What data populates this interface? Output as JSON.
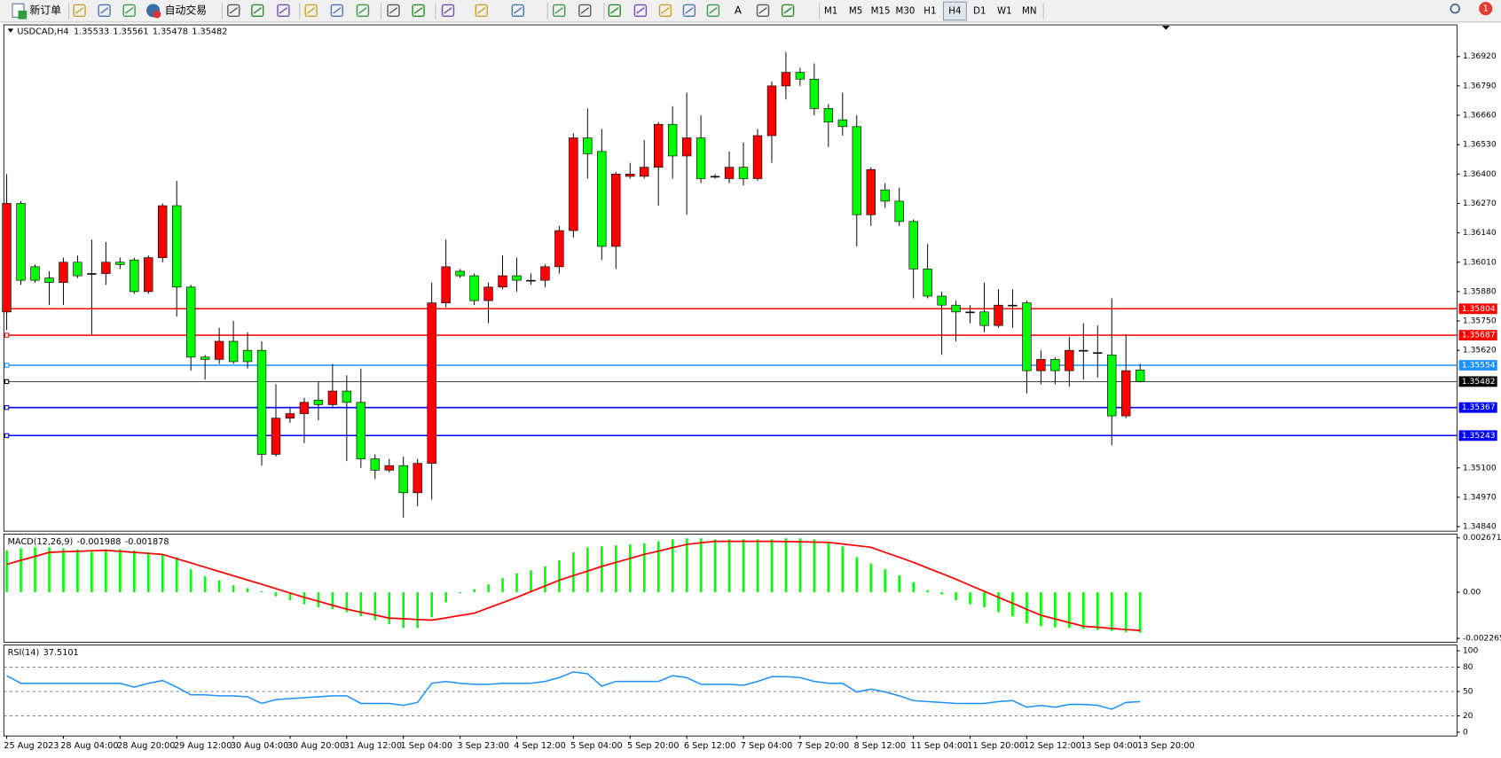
{
  "toolbar": {
    "new_order": "新订单",
    "auto_trading": "自动交易",
    "text_tool": "A",
    "notifications": 1,
    "timeframes": [
      "M1",
      "M5",
      "M15",
      "M30",
      "H1",
      "H4",
      "D1",
      "W1",
      "MN"
    ],
    "active_timeframe": "H4"
  },
  "chart_data": [
    {
      "type": "candlestick",
      "title": "USDCAD,H4",
      "up_color": "#ff0000",
      "down_color": "#00ff00",
      "categories": [
        "25 Aug 2023",
        null,
        null,
        null,
        "28 Aug 04:00",
        null,
        null,
        null,
        "28 Aug 20:00",
        null,
        null,
        null,
        "29 Aug 12:00",
        null,
        null,
        null,
        "30 Aug 04:00",
        null,
        null,
        null,
        "30 Aug 20:00",
        null,
        null,
        null,
        "31 Aug 12:00",
        null,
        null,
        null,
        "1 Sep 04:00",
        null,
        null,
        null,
        "3 Sep 23:00",
        null,
        null,
        null,
        "4 Sep 12:00",
        null,
        null,
        null,
        "5 Sep 04:00",
        null,
        null,
        null,
        "5 Sep 20:00",
        null,
        null,
        null,
        "6 Sep 12:00",
        null,
        null,
        null,
        "7 Sep 04:00",
        null,
        null,
        null,
        "7 Sep 20:00",
        null,
        null,
        null,
        "8 Sep 12:00",
        null,
        null,
        null,
        "11 Sep 04:00",
        null,
        null,
        null,
        "11 Sep 20:00",
        null,
        null,
        null,
        "12 Sep 12:00",
        null,
        null,
        null,
        "13 Sep 04:00",
        null,
        null,
        null,
        "13 Sep 20:00"
      ],
      "open": [
        1.3579,
        1.3627,
        1.3599,
        1.3594,
        1.3592,
        1.3601,
        1.3596,
        1.3596,
        1.3601,
        1.3602,
        1.3588,
        1.3603,
        1.3626,
        1.359,
        1.3559,
        1.3558,
        1.3566,
        1.3562,
        1.3562,
        1.3516,
        1.3532,
        1.3534,
        1.354,
        1.3538,
        1.3544,
        1.3539,
        1.3514,
        1.3509,
        1.3511,
        1.3499,
        1.3512,
        1.3583,
        1.3597,
        1.3595,
        1.3584,
        1.359,
        1.3595,
        1.3593,
        1.3593,
        1.3599,
        1.3615,
        1.3656,
        1.365,
        1.3608,
        1.3639,
        1.3639,
        1.3643,
        1.3662,
        1.3648,
        1.3656,
        1.3639,
        1.3638,
        1.3643,
        1.3638,
        1.3657,
        1.3679,
        1.3685,
        1.3682,
        1.3669,
        1.3664,
        1.3661,
        1.3622,
        1.3633,
        1.3628,
        1.3619,
        1.3598,
        1.3586,
        1.3582,
        1.3579,
        1.3579,
        1.3573,
        1.3582,
        1.3583,
        1.3553,
        1.3558,
        1.3553,
        1.3562,
        1.3561,
        1.356,
        1.3533,
        1.35533
      ],
      "high": [
        1.364,
        1.3628,
        1.36,
        1.3597,
        1.3603,
        1.3604,
        1.3611,
        1.361,
        1.3603,
        1.3603,
        1.3604,
        1.3627,
        1.3637,
        1.3591,
        1.356,
        1.3572,
        1.3575,
        1.357,
        1.3566,
        1.3547,
        1.3537,
        1.3541,
        1.3548,
        1.3556,
        1.3551,
        1.3554,
        1.3516,
        1.3514,
        1.3515,
        1.3514,
        1.3592,
        1.3611,
        1.3598,
        1.3596,
        1.3592,
        1.3604,
        1.3603,
        1.3596,
        1.36,
        1.3617,
        1.3658,
        1.3669,
        1.366,
        1.3641,
        1.3645,
        1.3655,
        1.3663,
        1.367,
        1.3676,
        1.3666,
        1.364,
        1.365,
        1.3654,
        1.366,
        1.3681,
        1.3694,
        1.3687,
        1.3689,
        1.3671,
        1.3676,
        1.3666,
        1.3643,
        1.3636,
        1.3634,
        1.362,
        1.3609,
        1.3588,
        1.3584,
        1.3582,
        1.3592,
        1.3589,
        1.3589,
        1.3584,
        1.3562,
        1.3559,
        1.3568,
        1.3574,
        1.3573,
        1.3585,
        1.3569,
        1.35561
      ],
      "low": [
        1.3571,
        1.3591,
        1.3592,
        1.3582,
        1.3582,
        1.3594,
        1.3569,
        1.3591,
        1.3598,
        1.3587,
        1.3587,
        1.3601,
        1.3577,
        1.3553,
        1.3549,
        1.3556,
        1.3556,
        1.3554,
        1.3511,
        1.3515,
        1.353,
        1.3521,
        1.3531,
        1.3537,
        1.3513,
        1.351,
        1.3505,
        1.3508,
        1.3488,
        1.3493,
        1.3496,
        1.3581,
        1.3594,
        1.3582,
        1.3574,
        1.3589,
        1.3588,
        1.3591,
        1.359,
        1.3596,
        1.3612,
        1.3638,
        1.3602,
        1.3598,
        1.3638,
        1.3638,
        1.3626,
        1.3638,
        1.3622,
        1.3636,
        1.3638,
        1.3636,
        1.3635,
        1.3637,
        1.3645,
        1.3673,
        1.3679,
        1.3666,
        1.3652,
        1.3657,
        1.3608,
        1.3617,
        1.3625,
        1.3617,
        1.3585,
        1.3585,
        1.356,
        1.3566,
        1.3574,
        1.357,
        1.3572,
        1.3572,
        1.3543,
        1.3547,
        1.3547,
        1.3546,
        1.3549,
        1.355,
        1.352,
        1.3532,
        1.35478
      ],
      "close": [
        1.3627,
        1.3593,
        1.3593,
        1.3592,
        1.3601,
        1.3595,
        1.3596,
        1.3601,
        1.36,
        1.3588,
        1.3603,
        1.3626,
        1.359,
        1.3559,
        1.3558,
        1.3566,
        1.3557,
        1.3557,
        1.3516,
        1.3532,
        1.3534,
        1.3539,
        1.3538,
        1.3544,
        1.3539,
        1.3514,
        1.3509,
        1.3511,
        1.3499,
        1.3512,
        1.3583,
        1.3599,
        1.3595,
        1.3584,
        1.359,
        1.3595,
        1.3593,
        1.3593,
        1.3599,
        1.3615,
        1.3656,
        1.3649,
        1.3608,
        1.364,
        1.364,
        1.3643,
        1.3662,
        1.3648,
        1.3656,
        1.3638,
        1.3639,
        1.3643,
        1.3638,
        1.3657,
        1.3679,
        1.3685,
        1.3682,
        1.3669,
        1.3663,
        1.3661,
        1.3622,
        1.3642,
        1.3628,
        1.3619,
        1.3598,
        1.3586,
        1.3582,
        1.3579,
        1.3579,
        1.3573,
        1.3582,
        1.3582,
        1.3553,
        1.3558,
        1.3553,
        1.3562,
        1.3562,
        1.3561,
        1.3533,
        1.3553,
        1.35482
      ],
      "ylim": [
        1.3482,
        1.3706
      ],
      "yticks": [
        {
          "value": 1.3692,
          "label": "1.36920"
        },
        {
          "value": 1.3679,
          "label": "1.36790"
        },
        {
          "value": 1.3666,
          "label": "1.36660"
        },
        {
          "value": 1.3653,
          "label": "1.36530"
        },
        {
          "value": 1.364,
          "label": "1.36400"
        },
        {
          "value": 1.3627,
          "label": "1.36270"
        },
        {
          "value": 1.3614,
          "label": "1.36140"
        },
        {
          "value": 1.3601,
          "label": "1.36010"
        },
        {
          "value": 1.3588,
          "label": "1.35880"
        },
        {
          "value": 1.3575,
          "label": "1.35750"
        },
        {
          "value": 1.3562,
          "label": "1.35620"
        },
        {
          "value": 1.351,
          "label": "1.35100"
        },
        {
          "value": 1.3497,
          "label": "1.34970"
        },
        {
          "value": 1.3484,
          "label": "1.34840"
        }
      ],
      "levels": [
        {
          "value": 1.35804,
          "color": "#ff0000"
        },
        {
          "value": 1.35687,
          "color": "#ff0000"
        },
        {
          "value": 1.35554,
          "color": "#1e90ff"
        },
        {
          "value": 1.35482,
          "color": "#000000"
        },
        {
          "value": 1.35367,
          "color": "#0000ff"
        },
        {
          "value": 1.35243,
          "color": "#0000ff"
        }
      ]
    },
    {
      "type": "macd",
      "title": "MACD(12,26,9)",
      "histogram": {
        "color": "#00ff00",
        "values": [
          0.00206,
          0.00216,
          0.00221,
          0.00221,
          0.00216,
          0.00211,
          0.00206,
          0.00211,
          0.00211,
          0.00206,
          0.00196,
          0.00186,
          0.00172,
          0.00113,
          0.00078,
          0.00059,
          0.00034,
          0.0002,
          5e-05,
          -0.0002,
          -0.00039,
          -0.00059,
          -0.00074,
          -0.00083,
          -0.00098,
          -0.00118,
          -0.00137,
          -0.00157,
          -0.00176,
          -0.00176,
          -0.00123,
          -0.00049,
          -5e-05,
          0.00015,
          0.00039,
          0.00069,
          0.00093,
          0.00108,
          0.00127,
          0.00157,
          0.00196,
          0.00221,
          0.00225,
          0.0023,
          0.00235,
          0.0024,
          0.0025,
          0.0026,
          0.00265,
          0.00265,
          0.0026,
          0.0026,
          0.0026,
          0.0026,
          0.0026,
          0.00265,
          0.00265,
          0.0026,
          0.00245,
          0.00225,
          0.00172,
          0.00142,
          0.00113,
          0.00083,
          0.00049,
          0.0001,
          -0.0001,
          -0.00039,
          -0.00059,
          -0.00074,
          -0.00098,
          -0.00118,
          -0.00152,
          -0.00167,
          -0.00172,
          -0.00176,
          -0.0018,
          -0.00185,
          -0.0019,
          -0.00196,
          -0.001988
        ]
      },
      "signal": {
        "color": "#ff0000",
        "values": [
          0.00137,
          0.00157,
          0.00176,
          0.00196,
          0.00199,
          0.00201,
          0.00204,
          0.00206,
          0.00201,
          0.00196,
          0.00191,
          0.00186,
          0.00165,
          0.00144,
          0.00123,
          0.00102,
          0.00081,
          0.0006,
          0.00039,
          0.00018,
          -4e-05,
          -0.00025,
          -0.00044,
          -0.00064,
          -0.00083,
          -0.00098,
          -0.00112,
          -0.00127,
          -0.0013,
          -0.00134,
          -0.00137,
          -0.00126,
          -0.00114,
          -0.00103,
          -0.00077,
          -0.00051,
          -0.00025,
          3e-05,
          0.00031,
          0.00059,
          0.00082,
          0.00104,
          0.00127,
          0.00147,
          0.00166,
          0.00186,
          0.00202,
          0.00219,
          0.00235,
          0.00243,
          0.0025,
          0.0025,
          0.0025,
          0.0025,
          0.0025,
          0.00249,
          0.00248,
          0.00246,
          0.00245,
          0.00237,
          0.00229,
          0.00221,
          0.00196,
          0.00172,
          0.00147,
          0.00119,
          0.00092,
          0.00064,
          0.00034,
          5e-05,
          -0.00025,
          -0.00054,
          -0.00084,
          -0.00113,
          -0.00131,
          -0.00149,
          -0.00167,
          -0.00172,
          -0.00178,
          -0.00183,
          -0.001878
        ]
      },
      "ylim": [
        -0.002265,
        0.002671
      ],
      "yticks": [
        0.002671,
        {
          "value": 0,
          "label": "0.00"
        },
        -0.002265
      ]
    },
    {
      "type": "line",
      "title": "RSI(14)",
      "color": "#1e90ff",
      "values": [
        69.4,
        60.0,
        60.0,
        60.0,
        60.0,
        60.0,
        60.0,
        60.0,
        60.0,
        55.3,
        60.0,
        63.5,
        55.3,
        45.9,
        45.9,
        44.7,
        44.7,
        43.5,
        35.3,
        40.0,
        41.2,
        42.4,
        43.5,
        44.7,
        44.7,
        35.3,
        35.3,
        35.3,
        32.9,
        36.5,
        60.0,
        62.4,
        60.0,
        58.8,
        58.8,
        60.0,
        60.0,
        60.0,
        62.4,
        67.1,
        74.1,
        71.8,
        56.5,
        62.4,
        62.4,
        62.4,
        62.4,
        69.4,
        67.1,
        58.8,
        58.8,
        58.8,
        57.6,
        62.4,
        68.2,
        68.2,
        67.1,
        62.4,
        60.0,
        60.0,
        49.4,
        52.9,
        49.4,
        44.7,
        38.8,
        37.6,
        36.5,
        35.3,
        35.3,
        35.3,
        37.6,
        38.8,
        30.6,
        32.9,
        30.6,
        34.1,
        34.1,
        32.9,
        28.2,
        36.5,
        37.5101
      ],
      "ylim": [
        0,
        100
      ],
      "yticks": [
        100,
        80,
        50,
        20,
        0
      ]
    }
  ]
}
